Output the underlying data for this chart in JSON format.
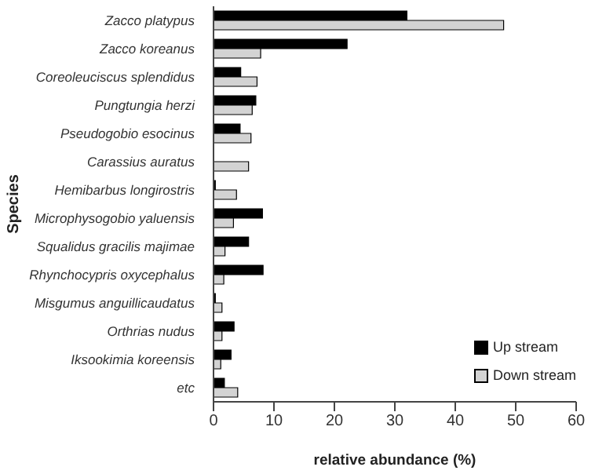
{
  "chart_data": {
    "type": "bar",
    "orientation": "horizontal",
    "xlabel": "relative abundance (%)",
    "ylabel": "Species",
    "categories": [
      "Zacco platypus",
      "Zacco koreanus",
      "Coreoleuciscus splendidus",
      "Pungtungia herzi",
      "Pseudogobio esocinus",
      "Carassius auratus",
      "Hemibarbus longirostris",
      "Microphysogobio yaluensis",
      "Squalidus gracilis majimae",
      "Rhynchocypris oxycephalus",
      "Misgumus anguillicaudatus",
      "Orthrias nudus",
      "Iksookimia koreensis",
      "etc"
    ],
    "series": [
      {
        "name": "Up stream",
        "color": "#000000",
        "values": [
          32.0,
          22.1,
          4.5,
          7.0,
          4.4,
          0,
          0.3,
          8.1,
          5.8,
          8.2,
          0.3,
          3.4,
          2.9,
          1.8
        ]
      },
      {
        "name": "Down stream",
        "color": "#d3d3d3",
        "values": [
          48.0,
          7.8,
          7.2,
          6.4,
          6.2,
          5.8,
          3.8,
          3.3,
          1.9,
          1.7,
          1.4,
          1.4,
          1.2,
          4.0
        ]
      }
    ],
    "xlim": [
      0,
      60
    ],
    "xticks": [
      0,
      10,
      20,
      30,
      40,
      50,
      60
    ],
    "grid": false,
    "legend": "bottom right"
  }
}
